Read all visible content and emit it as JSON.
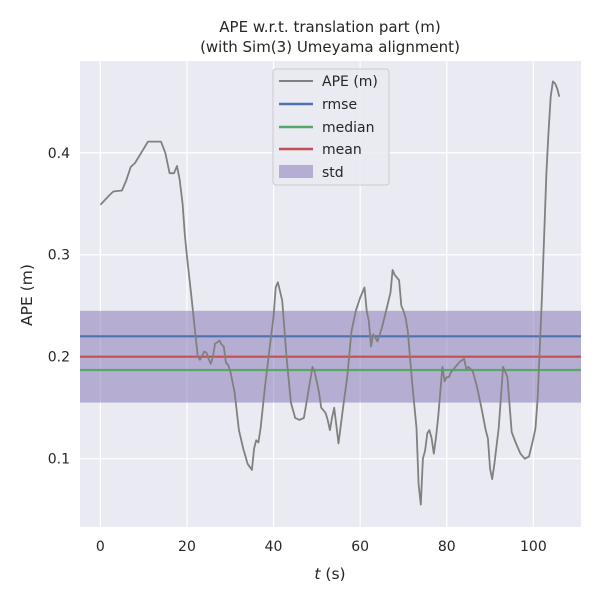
{
  "chart_data": {
    "type": "line",
    "title": "APE w.r.t. translation part (m)",
    "subtitle": "(with Sim(3) Umeyama alignment)",
    "xlabel_italic": "t",
    "xlabel_unit": " (s)",
    "ylabel": "APE (m)",
    "xlim": [
      -4.7,
      111
    ],
    "ylim": [
      0.033,
      0.49
    ],
    "xticks": [
      0,
      20,
      40,
      60,
      80,
      100
    ],
    "yticks": [
      0.1,
      0.2,
      0.3,
      0.4
    ],
    "xtick_labels": [
      "0",
      "20",
      "40",
      "60",
      "80",
      "100"
    ],
    "ytick_labels": [
      "0.1",
      "0.2",
      "0.3",
      "0.4"
    ],
    "grid": true,
    "legend_position": "top-center",
    "series": [
      {
        "name": "APE (m)",
        "color": "#808080",
        "x": [
          0,
          2,
          3,
          5,
          6,
          7,
          8,
          10,
          11,
          12,
          13,
          14,
          15,
          16,
          17,
          17.7,
          18.3,
          19,
          19.5,
          20,
          21,
          22,
          22.5,
          23,
          24,
          24.5,
          25,
          25.5,
          26,
          26.5,
          27,
          27.5,
          28,
          28.5,
          29,
          29.5,
          30,
          31,
          32,
          33,
          34,
          35,
          35.5,
          36,
          36.5,
          37,
          38,
          39,
          40,
          40.5,
          41,
          42,
          43,
          44,
          45,
          46,
          47,
          48,
          49,
          49.5,
          50,
          50.5,
          51,
          52,
          52.5,
          53,
          53.5,
          54,
          55,
          56,
          57,
          58,
          59,
          60,
          61,
          61.5,
          62,
          62.5,
          63,
          64,
          65,
          66,
          67,
          67.5,
          68,
          69,
          69.5,
          70,
          70.5,
          71,
          72,
          73,
          73.5,
          74,
          74.5,
          75,
          75.5,
          76,
          76.5,
          77,
          77.5,
          78,
          79,
          79.5,
          80,
          80.5,
          81,
          82,
          83,
          84,
          84.5,
          85,
          86,
          87,
          88,
          89,
          89.5,
          90,
          90.5,
          91,
          92,
          93,
          94,
          95,
          96,
          97,
          98,
          99,
          100,
          100.5,
          101,
          102,
          103,
          103.5,
          104,
          104.5,
          105,
          105.5,
          106
        ],
        "values": [
          0.349,
          0.358,
          0.362,
          0.363,
          0.373,
          0.386,
          0.39,
          0.404,
          0.411,
          0.411,
          0.411,
          0.411,
          0.4,
          0.38,
          0.38,
          0.387,
          0.374,
          0.35,
          0.32,
          0.298,
          0.26,
          0.22,
          0.2,
          0.197,
          0.205,
          0.204,
          0.198,
          0.193,
          0.2,
          0.213,
          0.214,
          0.216,
          0.212,
          0.21,
          0.194,
          0.192,
          0.186,
          0.165,
          0.128,
          0.11,
          0.095,
          0.089,
          0.11,
          0.118,
          0.116,
          0.13,
          0.17,
          0.205,
          0.24,
          0.268,
          0.273,
          0.255,
          0.2,
          0.155,
          0.14,
          0.138,
          0.14,
          0.165,
          0.19,
          0.185,
          0.175,
          0.165,
          0.15,
          0.145,
          0.138,
          0.128,
          0.14,
          0.15,
          0.115,
          0.148,
          0.18,
          0.225,
          0.245,
          0.258,
          0.268,
          0.245,
          0.235,
          0.21,
          0.222,
          0.215,
          0.228,
          0.245,
          0.263,
          0.285,
          0.28,
          0.275,
          0.25,
          0.245,
          0.238,
          0.225,
          0.175,
          0.13,
          0.075,
          0.055,
          0.1,
          0.108,
          0.125,
          0.128,
          0.12,
          0.105,
          0.12,
          0.14,
          0.19,
          0.176,
          0.18,
          0.18,
          0.185,
          0.19,
          0.195,
          0.198,
          0.188,
          0.19,
          0.186,
          0.17,
          0.15,
          0.128,
          0.12,
          0.09,
          0.08,
          0.095,
          0.13,
          0.19,
          0.18,
          0.126,
          0.115,
          0.105,
          0.1,
          0.102,
          0.12,
          0.13,
          0.16,
          0.26,
          0.38,
          0.42,
          0.455,
          0.47,
          0.468,
          0.463,
          0.455
        ]
      },
      {
        "name": "rmse",
        "color": "#4c72b0",
        "value": 0.22
      },
      {
        "name": "median",
        "color": "#55a868",
        "value": 0.187
      },
      {
        "name": "mean",
        "color": "#c44e52",
        "value": 0.2
      },
      {
        "name": "std",
        "color": "#8172b2",
        "range": [
          0.155,
          0.245
        ]
      }
    ]
  }
}
